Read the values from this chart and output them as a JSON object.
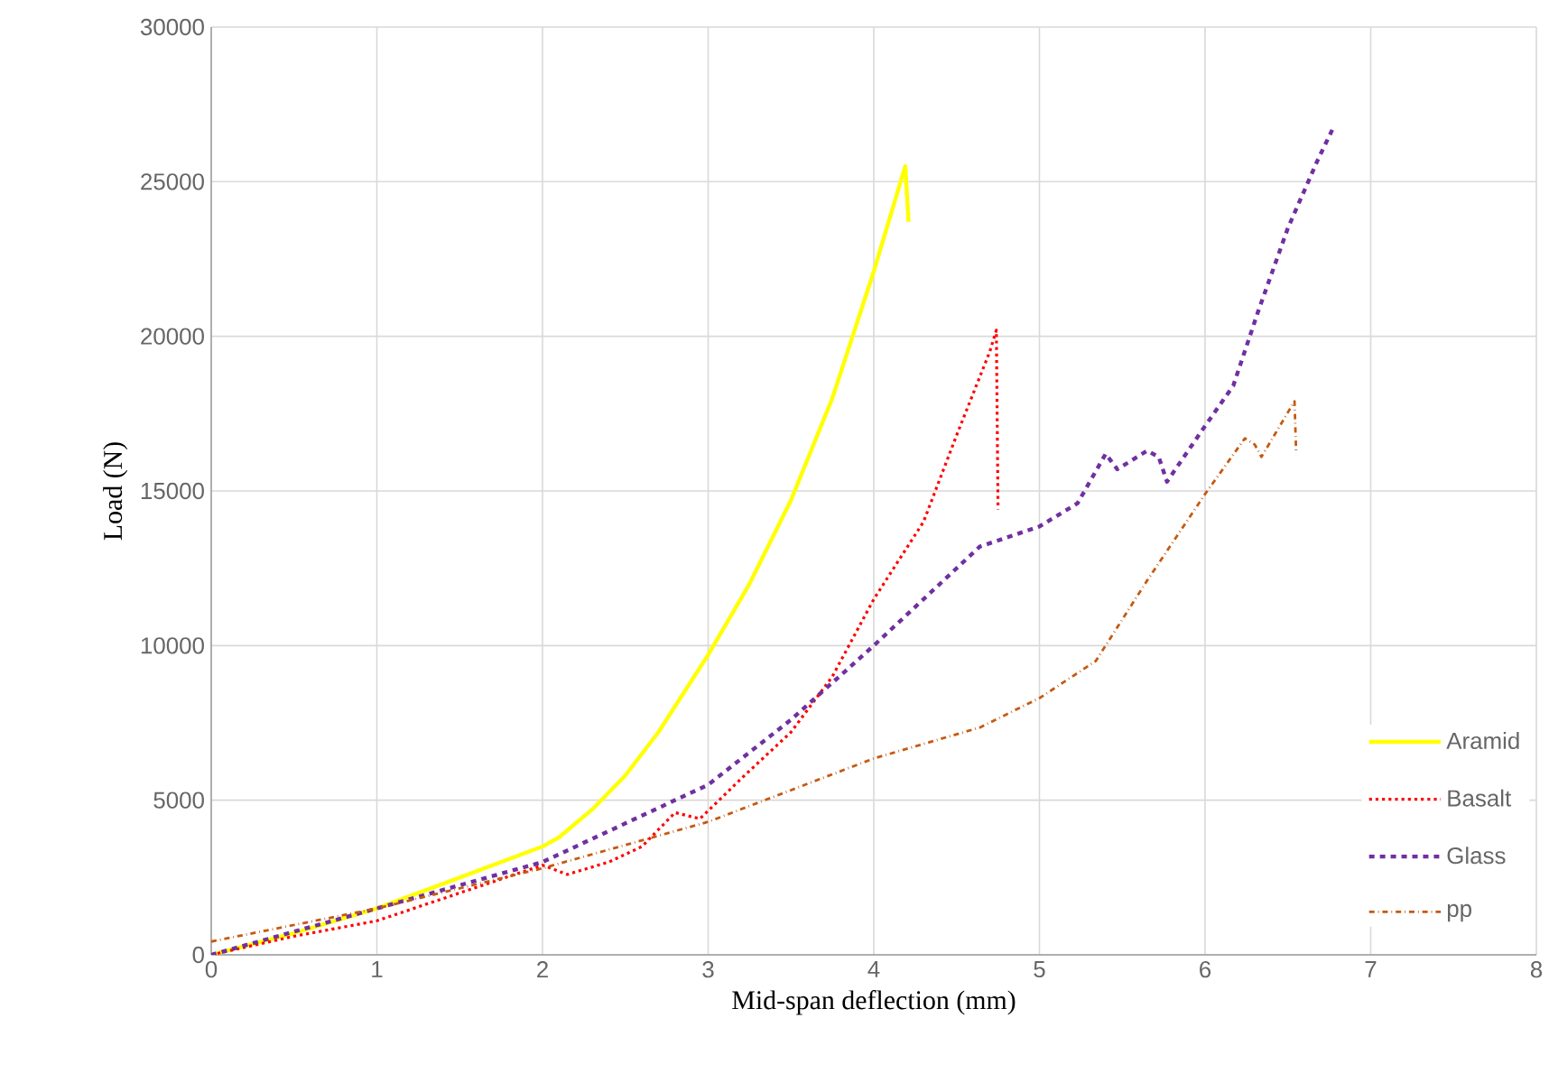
{
  "chart_data": {
    "type": "line",
    "xlabel": "Mid-span deflection (mm)",
    "ylabel": "Load (N)",
    "xlim": [
      0,
      8
    ],
    "ylim": [
      0,
      30000
    ],
    "xticks": [
      0,
      1,
      2,
      3,
      4,
      5,
      6,
      7,
      8
    ],
    "yticks": [
      0,
      5000,
      10000,
      15000,
      20000,
      25000,
      30000
    ],
    "grid": true,
    "legend": "bottom right",
    "marker": "none",
    "series": [
      {
        "name": "Aramid",
        "color": "#ffff00",
        "line_style": "solid",
        "x": [
          0,
          0.5,
          1,
          1.5,
          2,
          2.1,
          2.3,
          2.5,
          2.7,
          3,
          3.25,
          3.5,
          3.75,
          4,
          4.19,
          4.21
        ],
        "values": [
          0,
          700,
          1500,
          2500,
          3500,
          3800,
          4700,
          5800,
          7200,
          9700,
          12000,
          14700,
          18000,
          22100,
          25500,
          23700
        ]
      },
      {
        "name": "Basalt",
        "color": "#ff0000",
        "line_style": "dotted",
        "x": [
          0,
          0.5,
          1,
          1.5,
          2,
          2.15,
          2.4,
          2.6,
          2.8,
          2.95,
          3.2,
          3.5,
          3.75,
          4,
          4.3,
          4.5,
          4.7,
          4.74,
          4.75
        ],
        "values": [
          0,
          600,
          1100,
          2000,
          2900,
          2600,
          3000,
          3500,
          4600,
          4400,
          5700,
          7200,
          9000,
          11500,
          14000,
          16800,
          19500,
          20200,
          14400
        ]
      },
      {
        "name": "Glass",
        "color": "#7030a0",
        "line_style": "dashed",
        "x": [
          0,
          1,
          2,
          3,
          3.5,
          4,
          4.64,
          5,
          5.23,
          5.4,
          5.47,
          5.65,
          5.72,
          5.77,
          6,
          6.17,
          6.32,
          6.5,
          6.68,
          6.77
        ],
        "values": [
          0,
          1500,
          3000,
          5500,
          7600,
          10000,
          13200,
          13850,
          14600,
          16200,
          15700,
          16300,
          16100,
          15300,
          17100,
          18400,
          20800,
          23500,
          25700,
          26700
        ]
      },
      {
        "name": "pp",
        "color": "#c55a11",
        "line_style": "dashdot",
        "x": [
          0,
          1,
          2,
          3,
          4,
          4.64,
          5,
          5.34,
          5.65,
          6,
          6.24,
          6.3,
          6.34,
          6.54,
          6.55
        ],
        "values": [
          430,
          1500,
          2800,
          4300,
          6350,
          7350,
          8300,
          9500,
          12100,
          14900,
          16700,
          16500,
          16100,
          17900,
          16200
        ]
      }
    ]
  }
}
